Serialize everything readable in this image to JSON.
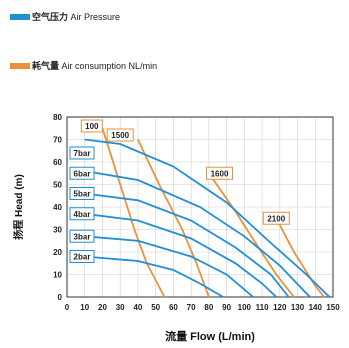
{
  "legend": [
    {
      "cn": "空气压力",
      "en": "Air Pressure",
      "color": "#1f8fd6"
    },
    {
      "cn": "耗气量",
      "en": "Air consumption NL/min",
      "color": "#e9923a"
    }
  ],
  "chart_data": {
    "type": "line",
    "xlabel_cn": "流量",
    "xlabel_en": "Flow",
    "xunit": "(L/min)",
    "ylabel_cn": "扬程",
    "ylabel_en": "Head",
    "yunit": "(m)",
    "xlim": [
      0,
      150
    ],
    "ylim": [
      0,
      80
    ],
    "xticks": [
      0,
      10,
      20,
      30,
      40,
      50,
      60,
      70,
      80,
      90,
      100,
      110,
      120,
      130,
      140,
      150
    ],
    "yticks": [
      0,
      10,
      20,
      30,
      40,
      50,
      60,
      70,
      80
    ],
    "grid": true,
    "pressure_color": "#1f8fd6",
    "consumption_color": "#e9923a",
    "pressure_series": [
      {
        "name": "7bar",
        "points": [
          [
            10,
            70
          ],
          [
            30,
            68
          ],
          [
            60,
            58
          ],
          [
            90,
            42
          ],
          [
            115,
            24
          ],
          [
            135,
            10
          ],
          [
            148,
            0
          ]
        ]
      },
      {
        "name": "6bar",
        "points": [
          [
            10,
            56
          ],
          [
            40,
            52
          ],
          [
            75,
            40
          ],
          [
            100,
            27
          ],
          [
            120,
            14
          ],
          [
            137,
            0
          ]
        ]
      },
      {
        "name": "5bar",
        "points": [
          [
            10,
            46
          ],
          [
            40,
            43
          ],
          [
            70,
            34
          ],
          [
            95,
            22
          ],
          [
            115,
            10
          ],
          [
            125,
            0
          ]
        ]
      },
      {
        "name": "4bar",
        "points": [
          [
            10,
            37
          ],
          [
            40,
            34
          ],
          [
            70,
            26
          ],
          [
            95,
            15
          ],
          [
            110,
            6
          ],
          [
            118,
            0
          ]
        ]
      },
      {
        "name": "3bar",
        "points": [
          [
            10,
            27
          ],
          [
            40,
            25
          ],
          [
            70,
            18
          ],
          [
            90,
            10
          ],
          [
            105,
            0
          ]
        ]
      },
      {
        "name": "2bar",
        "points": [
          [
            10,
            18
          ],
          [
            40,
            16
          ],
          [
            60,
            12
          ],
          [
            75,
            6
          ],
          [
            88,
            0
          ]
        ]
      }
    ],
    "consumption_series": [
      {
        "name": "100",
        "points": [
          [
            20,
            75
          ],
          [
            28,
            55
          ],
          [
            38,
            30
          ],
          [
            45,
            15
          ],
          [
            55,
            0
          ]
        ]
      },
      {
        "name": "1500",
        "points": [
          [
            40,
            70
          ],
          [
            52,
            50
          ],
          [
            65,
            30
          ],
          [
            73,
            15
          ],
          [
            80,
            0
          ]
        ]
      },
      {
        "name": "1600",
        "points": [
          [
            80,
            55
          ],
          [
            95,
            38
          ],
          [
            108,
            22
          ],
          [
            118,
            10
          ],
          [
            128,
            0
          ]
        ]
      },
      {
        "name": "2100",
        "points": [
          [
            118,
            35
          ],
          [
            128,
            20
          ],
          [
            140,
            5
          ],
          [
            145,
            0
          ]
        ]
      }
    ],
    "pressure_labels": [
      {
        "text": "7bar",
        "y": 64
      },
      {
        "text": "6bar",
        "y": 55
      },
      {
        "text": "5bar",
        "y": 46
      },
      {
        "text": "4bar",
        "y": 37
      },
      {
        "text": "3bar",
        "y": 27
      },
      {
        "text": "2bar",
        "y": 18
      }
    ],
    "consumption_labels": [
      {
        "text": "100",
        "x": 14,
        "y": 76
      },
      {
        "text": "1500",
        "x": 30,
        "y": 72
      },
      {
        "text": "1600",
        "x": 86,
        "y": 55
      },
      {
        "text": "2100",
        "x": 118,
        "y": 35
      }
    ]
  }
}
